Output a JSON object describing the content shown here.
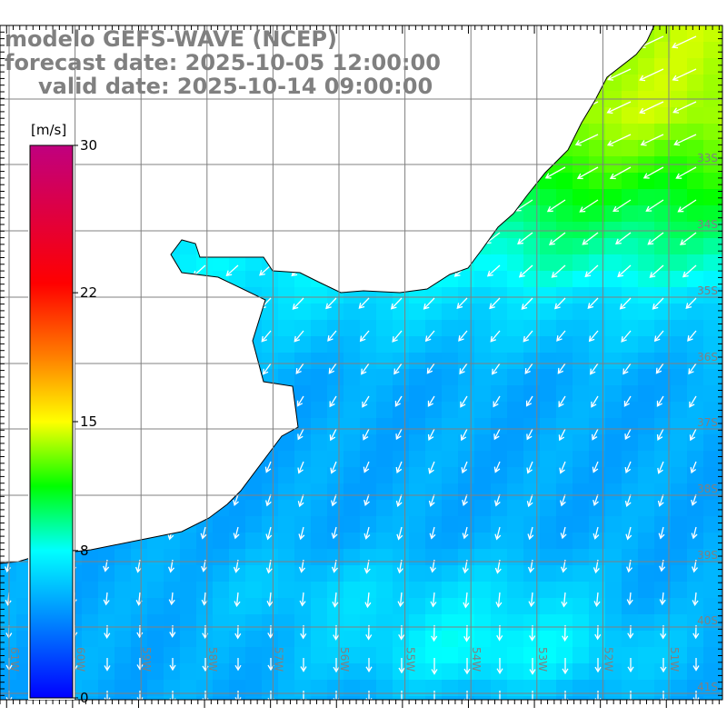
{
  "title": {
    "line1": "modelo GEFS-WAVE (NCEP)",
    "line2": "forecast date: 2025-10-05 12:00:00",
    "line3": "valid date: 2025-10-14 09:00:00"
  },
  "colorbar": {
    "unit": "[m/s]",
    "ticks": [
      "30",
      "22",
      "15",
      "8",
      "0"
    ],
    "stops": [
      {
        "v": 0,
        "c": "#0000ff"
      },
      {
        "v": 4,
        "c": "#0080ff"
      },
      {
        "v": 8,
        "c": "#00ffff"
      },
      {
        "v": 11.5,
        "c": "#00ff00"
      },
      {
        "v": 15,
        "c": "#ffff00"
      },
      {
        "v": 18.5,
        "c": "#ff8000"
      },
      {
        "v": 22.5,
        "c": "#ff0000"
      },
      {
        "v": 30,
        "c": "#c0007f"
      }
    ]
  },
  "axes": {
    "lon_labels": [
      "61W",
      "60W",
      "59W",
      "58W",
      "57W",
      "56W",
      "55W",
      "54W",
      "53W",
      "52W",
      "51W"
    ],
    "lat_labels": [
      "33S",
      "34S",
      "35S",
      "36S",
      "37S",
      "38S",
      "39S",
      "40S",
      "41S"
    ]
  },
  "colors": {
    "grid": "#808080",
    "land": "#ffffff",
    "coast": "#000000",
    "label": "#808080"
  }
}
